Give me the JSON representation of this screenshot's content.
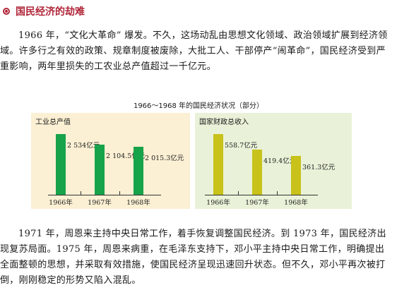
{
  "section": {
    "title": "国民经济的劫难"
  },
  "paragraphs": {
    "p1": "1966 年，“文化大革命” 爆发。不久，这场动乱由思想文化领域、政治领域扩展到经济领域。许多行之有效的政策、规章制度被废除，大批工人、干部停产“闹革命”，国民经济受到严重影响，两年里损失的工农业总产值超过一千亿元。",
    "p2": "1971 年，周恩来主持中央日常工作，着手恢复调整国民经济。到 1973 年，国民经济出现复苏局面。1975 年，周恩来病重，在毛泽东支持下，邓小平主持中央日常工作，明确提出全面整顿的思想，并采取有效措施，使国民经济呈现迅速回升状态。但不久，邓小平再次被打倒，刚刚稳定的形势又陷入混乱。"
  },
  "chart_data": [
    {
      "type": "bar",
      "title": "1966～1968 年的国民经济状况（部分）",
      "panel_label": "工业总产值",
      "categories": [
        "1966年",
        "1967年",
        "1968年"
      ],
      "values": [
        2534,
        2104.5,
        2015.3
      ],
      "value_labels": [
        "2 534亿元",
        "2 104.5亿元",
        "2 015.3亿元"
      ],
      "ylim": [
        0,
        2900
      ],
      "color": "#17a34a",
      "background": "#fbf0d3"
    },
    {
      "type": "bar",
      "panel_label": "国家财政总收入",
      "categories": [
        "1966年",
        "1967年",
        "1968年"
      ],
      "values": [
        558.7,
        419.4,
        361.3
      ],
      "value_labels": [
        "558.7亿元",
        "419.4亿元",
        "361.3亿元"
      ],
      "ylim": [
        0,
        640
      ],
      "color": "#c8c21a",
      "background": "#e9f2d8"
    }
  ]
}
